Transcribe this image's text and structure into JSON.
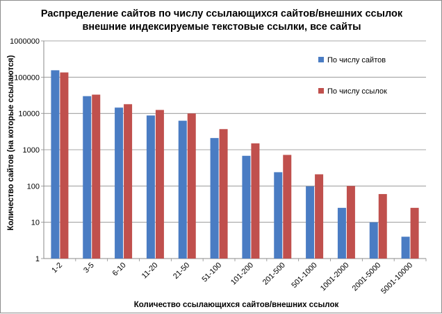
{
  "chart_data": {
    "type": "bar",
    "title_line1": "Распределение сайтов по числу ссылающихся сайтов/внешних ссылок",
    "title_line2": "внешние индексируемые текстовые ссылки, все сайты",
    "xlabel": "Количество ссылающихся сайтов/внешних ссылок",
    "ylabel": "Количество сайтов (на которые ссылаются)",
    "yscale": "log",
    "ylim": [
      1,
      1000000
    ],
    "yticks": [
      "1",
      "10",
      "100",
      "1000",
      "10000",
      "100000",
      "1000000"
    ],
    "grid": true,
    "legend_position": "right",
    "categories": [
      "1-2",
      "3-5",
      "6-10",
      "11-20",
      "21-50",
      "51-100",
      "101-200",
      "201-500",
      "501-1000",
      "1001-2000",
      "2001-5000",
      "5001-10000"
    ],
    "series": [
      {
        "name": "По числу сайтов",
        "color": "#4a7cc3",
        "values": [
          155000,
          30000,
          14500,
          8800,
          6300,
          2100,
          680,
          240,
          98,
          25,
          10,
          4
        ]
      },
      {
        "name": "По числу ссылок",
        "color": "#c0504d",
        "values": [
          135000,
          33000,
          18000,
          12500,
          10000,
          3700,
          1500,
          720,
          210,
          100,
          60,
          25
        ]
      }
    ]
  }
}
